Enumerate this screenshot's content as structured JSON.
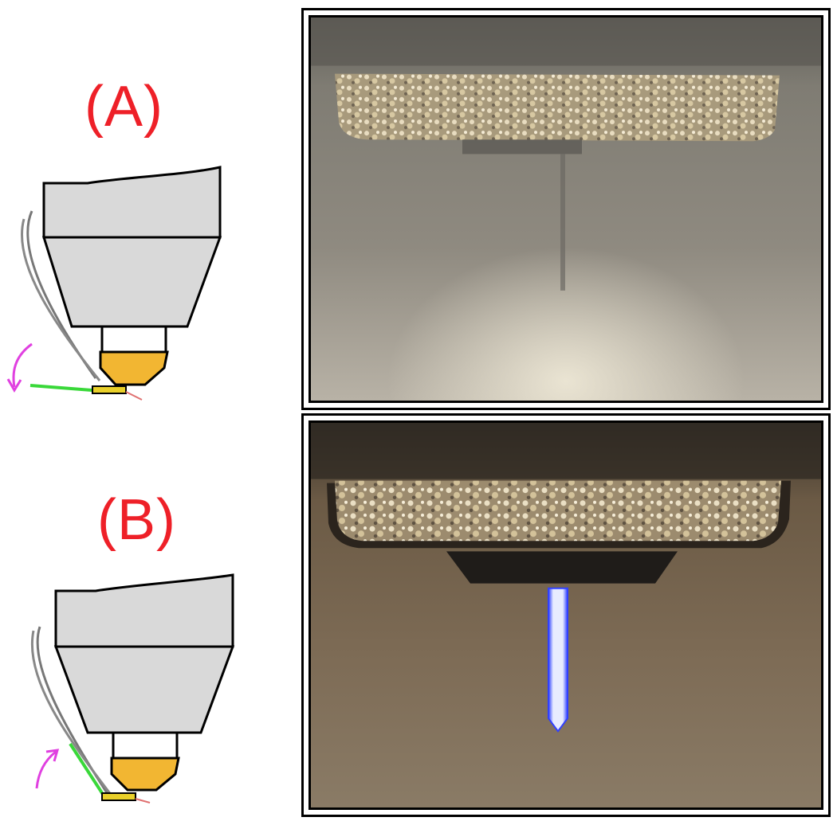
{
  "panels": [
    {
      "id": "A",
      "label": "(A)"
    },
    {
      "id": "B",
      "label": "(B)"
    }
  ],
  "colors": {
    "label_red": "#ee2028",
    "housing_gray": "#d9d9d9",
    "gold_tip": "#f2b632",
    "green_lever": "#39d839",
    "magenta_arrow": "#e040e0"
  }
}
